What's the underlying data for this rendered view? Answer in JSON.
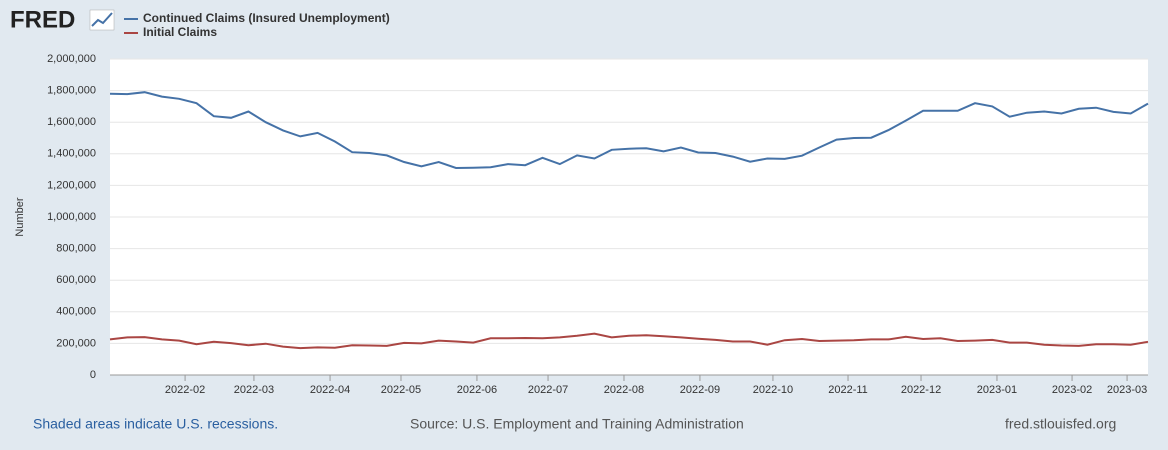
{
  "logo": "FRED",
  "chart_data": {
    "type": "line",
    "y_label": "Number",
    "footnote": "Shaded areas indicate U.S. recessions.",
    "source": "Source: U.S. Employment and Training Administration",
    "site": "fred.stlouisfed.org",
    "categories": [
      null,
      null,
      null,
      null,
      null,
      null,
      null,
      null,
      null,
      null,
      null,
      null,
      null,
      null,
      null,
      null,
      null,
      null,
      null,
      null,
      null,
      null,
      null,
      null,
      null,
      null,
      null,
      null,
      null,
      null,
      null,
      null,
      null,
      null,
      null,
      null,
      null,
      null,
      null,
      null,
      null,
      null,
      null,
      null,
      null,
      null,
      null,
      null,
      null,
      null,
      null,
      null,
      null,
      null,
      null,
      null,
      null,
      null,
      null,
      null,
      null
    ],
    "xlim": [
      0,
      60
    ],
    "xticks": [
      {
        "value": 4.34,
        "label": "2022-02"
      },
      {
        "value": 8.32,
        "label": "2022-03"
      },
      {
        "value": 12.72,
        "label": "2022-04"
      },
      {
        "value": 16.82,
        "label": "2022-05"
      },
      {
        "value": 21.21,
        "label": "2022-06"
      },
      {
        "value": 25.32,
        "label": "2022-07"
      },
      {
        "value": 29.71,
        "label": "2022-08"
      },
      {
        "value": 34.1,
        "label": "2022-09"
      },
      {
        "value": 38.32,
        "label": "2022-10"
      },
      {
        "value": 42.66,
        "label": "2022-11"
      },
      {
        "value": 46.88,
        "label": "2022-12"
      },
      {
        "value": 51.27,
        "label": "2023-01"
      },
      {
        "value": 55.61,
        "label": "2023-02"
      },
      {
        "value": 58.79,
        "label": "2023-03"
      }
    ],
    "ylim": [
      0,
      2000000
    ],
    "yticks": [
      0,
      {
        "value": 200000,
        "label": "200,000"
      },
      {
        "value": 400000,
        "label": "400,000"
      },
      {
        "value": 600000,
        "label": "600,000"
      },
      {
        "value": 800000,
        "label": "800,000"
      },
      {
        "value": 1000000,
        "label": "1,000,000"
      },
      {
        "value": 1200000,
        "label": "1,200,000"
      },
      {
        "value": 1400000,
        "label": "1,400,000"
      },
      {
        "value": 1600000,
        "label": "1,600,000"
      },
      {
        "value": 1800000,
        "label": "1,800,000"
      },
      {
        "value": 2000000,
        "label": "2,000,000"
      }
    ],
    "grid": true,
    "series": [
      {
        "name": "Continued Claims (Insured Unemployment)",
        "color": "#4572a7",
        "values": [
          1780000,
          1778000,
          1790000,
          1762000,
          1748000,
          1720000,
          1638000,
          1628000,
          1668000,
          1600000,
          1548000,
          1510000,
          1532000,
          1478000,
          1410000,
          1405000,
          1390000,
          1348000,
          1320000,
          1348000,
          1310000,
          1312000,
          1315000,
          1335000,
          1328000,
          1375000,
          1335000,
          1390000,
          1370000,
          1425000,
          1432000,
          1435000,
          1415000,
          1440000,
          1408000,
          1405000,
          1382000,
          1350000,
          1370000,
          1368000,
          1388000,
          1440000,
          1490000,
          1500000,
          1502000,
          1550000,
          1610000,
          1672000,
          1672000,
          1672000,
          1720000,
          1700000,
          1635000,
          1660000,
          1668000,
          1655000,
          1685000,
          1692000,
          1665000,
          1655000,
          1718000
        ]
      },
      {
        "name": "Initial Claims",
        "color": "#aa4643",
        "values": [
          225000,
          238000,
          240000,
          225000,
          218000,
          195000,
          210000,
          202000,
          188000,
          198000,
          180000,
          170000,
          175000,
          172000,
          188000,
          187000,
          184000,
          203000,
          200000,
          218000,
          212000,
          205000,
          232000,
          232000,
          234000,
          233000,
          238000,
          248000,
          262000,
          238000,
          248000,
          252000,
          245000,
          238000,
          230000,
          222000,
          212000,
          212000,
          192000,
          220000,
          228000,
          215000,
          218000,
          220000,
          225000,
          225000,
          242000,
          228000,
          232000,
          215000,
          218000,
          222000,
          205000,
          205000,
          192000,
          187000,
          184000,
          195000,
          195000,
          192000,
          210000
        ]
      }
    ]
  }
}
